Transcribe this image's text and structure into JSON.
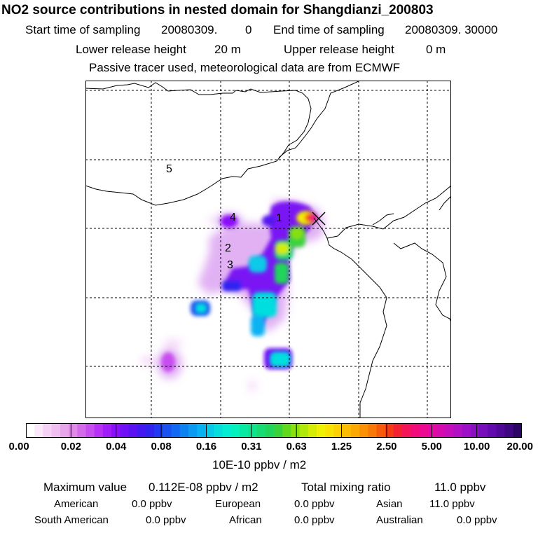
{
  "header": {
    "title": "NO2 source contributions in nested domain for Shangdianzi_200803",
    "start_label": "Start time of sampling",
    "start_value": "20080309.",
    "start_suffix": "0",
    "end_label": "End time of sampling",
    "end_value": "20080309. 30000",
    "lower_label": "Lower release height",
    "lower_value": "20 m",
    "upper_label": "Upper release height",
    "upper_value": "0 m",
    "note": "Passive tracer used, meteorological data are from ECMWF"
  },
  "map": {
    "region_labels": [
      "1",
      "2",
      "3",
      "4",
      "5"
    ],
    "receptor_marker": "receptor-x-marker"
  },
  "colorbar": {
    "ticks": [
      "0.00",
      "0.02",
      "0.04",
      "0.08",
      "0.16",
      "0.31",
      "0.63",
      "1.25",
      "2.50",
      "5.00",
      "10.00",
      "20.00"
    ],
    "colors": [
      "#ffffff",
      "#fbe8fb",
      "#f5d2f5",
      "#f0bef0",
      "#e8a6ea",
      "#df8ae6",
      "#d26aea",
      "#c64ef0",
      "#b830f5",
      "#a01cf8",
      "#8a10f8",
      "#7010f6",
      "#5a12f2",
      "#4418f0",
      "#3222f0",
      "#2238f2",
      "#1a52f2",
      "#1268f2",
      "#0c82f2",
      "#0a9af2",
      "#08b2f2",
      "#08cae8",
      "#06dede",
      "#04ecd2",
      "#04f0bc",
      "#06eaa4",
      "#0ee48c",
      "#18dc72",
      "#22d45a",
      "#3ad23a",
      "#60d81c",
      "#88e00e",
      "#b0e808",
      "#d4ec06",
      "#f0f004",
      "#f8e204",
      "#fcd004",
      "#fcbc04",
      "#fca804",
      "#fc9004",
      "#fa7808",
      "#f85a0c",
      "#f63a14",
      "#f42230",
      "#f41458",
      "#f20c7a",
      "#ec0a92",
      "#e20aa2",
      "#d40cb0",
      "#c40ebc",
      "#b210c4",
      "#9e10c8",
      "#8a0ec4",
      "#760cbc",
      "#620aae",
      "#500898",
      "#3e0680",
      "#2c0466"
    ],
    "unit": "10E-10 ppbv / m2"
  },
  "stats": {
    "max_label": "Maximum value",
    "max_value": "0.112E-08 ppbv / m2",
    "total_label": "Total mixing ratio",
    "total_value": "11.0 ppbv",
    "american_label": "American",
    "american_value": "0.0 ppbv",
    "european_label": "European",
    "european_value": "0.0 ppbv",
    "asian_label": "Asian",
    "asian_value": "11.0 ppbv",
    "south_american_label": "South American",
    "south_american_value": "0.0 ppbv",
    "african_label": "African",
    "african_value": "0.0 ppbv",
    "australian_label": "Australian",
    "australian_value": "0.0 ppbv"
  }
}
